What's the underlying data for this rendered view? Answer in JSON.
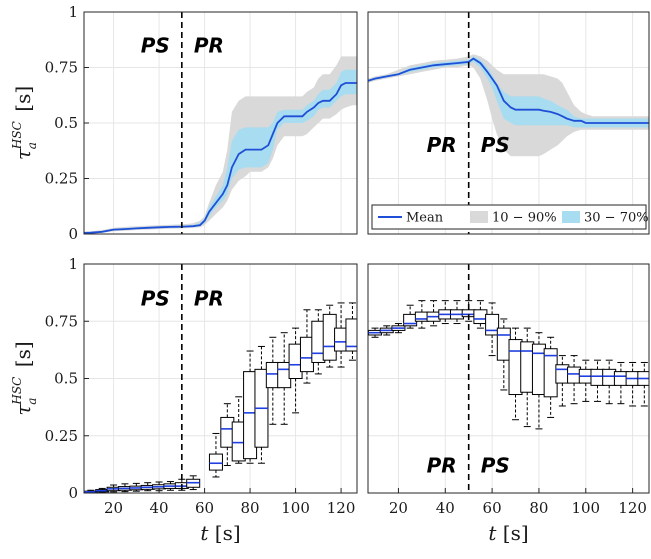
{
  "chart_data": [
    {
      "type": "area",
      "panel": "top-left",
      "xlim": [
        7,
        127
      ],
      "ylim": [
        0,
        1
      ],
      "yticks": [
        "0",
        "0.25",
        "0.5",
        "0.75",
        "1"
      ],
      "ylabel_main": "τ",
      "ylabel_sub": "a",
      "ylabel_sup": "HSC",
      "ylabel_unit": "[s]",
      "vline_x": 50,
      "phase_left": "PS",
      "phase_right": "PR",
      "phase_y": 0.85,
      "x": [
        7,
        10,
        15,
        20,
        25,
        30,
        35,
        40,
        45,
        50,
        52,
        55,
        58,
        60,
        62,
        65,
        68,
        70,
        72,
        75,
        78,
        80,
        82,
        85,
        88,
        90,
        92,
        95,
        98,
        100,
        103,
        105,
        108,
        110,
        112,
        115,
        118,
        120,
        122,
        125,
        127
      ],
      "mean": [
        0.005,
        0.006,
        0.01,
        0.02,
        0.022,
        0.025,
        0.028,
        0.03,
        0.032,
        0.033,
        0.034,
        0.035,
        0.04,
        0.06,
        0.1,
        0.14,
        0.18,
        0.22,
        0.3,
        0.36,
        0.38,
        0.38,
        0.38,
        0.38,
        0.4,
        0.45,
        0.5,
        0.53,
        0.53,
        0.53,
        0.53,
        0.55,
        0.57,
        0.59,
        0.6,
        0.6,
        0.63,
        0.67,
        0.68,
        0.68,
        0.68
      ],
      "p10": [
        0.0,
        0.002,
        0.006,
        0.012,
        0.015,
        0.018,
        0.02,
        0.022,
        0.024,
        0.025,
        0.026,
        0.028,
        0.03,
        0.04,
        0.06,
        0.09,
        0.12,
        0.15,
        0.2,
        0.24,
        0.26,
        0.28,
        0.28,
        0.28,
        0.3,
        0.34,
        0.4,
        0.44,
        0.44,
        0.44,
        0.44,
        0.45,
        0.48,
        0.5,
        0.52,
        0.52,
        0.54,
        0.56,
        0.57,
        0.58,
        0.58
      ],
      "p90": [
        0.01,
        0.012,
        0.018,
        0.028,
        0.032,
        0.035,
        0.038,
        0.04,
        0.042,
        0.044,
        0.045,
        0.048,
        0.06,
        0.08,
        0.14,
        0.22,
        0.28,
        0.38,
        0.55,
        0.6,
        0.62,
        0.62,
        0.62,
        0.62,
        0.62,
        0.62,
        0.62,
        0.62,
        0.62,
        0.62,
        0.62,
        0.64,
        0.66,
        0.7,
        0.72,
        0.72,
        0.76,
        0.8,
        0.8,
        0.8,
        0.8
      ],
      "p30": [
        0.003,
        0.004,
        0.008,
        0.016,
        0.018,
        0.021,
        0.024,
        0.026,
        0.028,
        0.029,
        0.03,
        0.031,
        0.035,
        0.05,
        0.08,
        0.12,
        0.15,
        0.18,
        0.25,
        0.29,
        0.3,
        0.3,
        0.3,
        0.3,
        0.32,
        0.38,
        0.47,
        0.5,
        0.5,
        0.5,
        0.5,
        0.51,
        0.53,
        0.56,
        0.57,
        0.57,
        0.6,
        0.62,
        0.63,
        0.63,
        0.63
      ],
      "p70": [
        0.007,
        0.009,
        0.014,
        0.024,
        0.027,
        0.03,
        0.033,
        0.035,
        0.037,
        0.038,
        0.039,
        0.041,
        0.05,
        0.07,
        0.12,
        0.17,
        0.22,
        0.3,
        0.42,
        0.47,
        0.48,
        0.48,
        0.48,
        0.48,
        0.48,
        0.5,
        0.55,
        0.56,
        0.56,
        0.56,
        0.56,
        0.58,
        0.6,
        0.63,
        0.65,
        0.65,
        0.68,
        0.73,
        0.74,
        0.74,
        0.74
      ]
    },
    {
      "type": "area",
      "panel": "top-right",
      "xlim": [
        7,
        127
      ],
      "ylim": [
        0,
        1
      ],
      "vline_x": 50,
      "phase_left": "PR",
      "phase_right": "PS",
      "phase_y": 0.4,
      "x": [
        7,
        10,
        15,
        20,
        25,
        30,
        35,
        40,
        45,
        50,
        52,
        55,
        58,
        60,
        62,
        65,
        68,
        70,
        72,
        75,
        78,
        80,
        82,
        85,
        88,
        90,
        92,
        95,
        98,
        100,
        103,
        105,
        108,
        110,
        112,
        115,
        118,
        120,
        122,
        125,
        127
      ],
      "mean": [
        0.69,
        0.7,
        0.71,
        0.72,
        0.74,
        0.75,
        0.76,
        0.765,
        0.77,
        0.775,
        0.79,
        0.77,
        0.73,
        0.7,
        0.67,
        0.6,
        0.57,
        0.56,
        0.56,
        0.56,
        0.56,
        0.56,
        0.555,
        0.55,
        0.54,
        0.53,
        0.52,
        0.51,
        0.51,
        0.5,
        0.5,
        0.5,
        0.5,
        0.5,
        0.5,
        0.5,
        0.5,
        0.5,
        0.5,
        0.5,
        0.5
      ],
      "p10": [
        0.68,
        0.69,
        0.7,
        0.71,
        0.72,
        0.73,
        0.74,
        0.75,
        0.75,
        0.76,
        0.75,
        0.7,
        0.6,
        0.52,
        0.45,
        0.38,
        0.35,
        0.35,
        0.35,
        0.35,
        0.35,
        0.35,
        0.36,
        0.38,
        0.4,
        0.42,
        0.44,
        0.46,
        0.47,
        0.47,
        0.47,
        0.47,
        0.47,
        0.47,
        0.47,
        0.47,
        0.47,
        0.47,
        0.47,
        0.47,
        0.47
      ],
      "p90": [
        0.7,
        0.71,
        0.72,
        0.74,
        0.76,
        0.77,
        0.78,
        0.785,
        0.79,
        0.8,
        0.81,
        0.8,
        0.78,
        0.76,
        0.74,
        0.72,
        0.72,
        0.72,
        0.72,
        0.72,
        0.72,
        0.72,
        0.72,
        0.71,
        0.7,
        0.68,
        0.64,
        0.58,
        0.55,
        0.54,
        0.53,
        0.53,
        0.53,
        0.53,
        0.53,
        0.53,
        0.53,
        0.53,
        0.53,
        0.53,
        0.53
      ],
      "p30": [
        0.685,
        0.695,
        0.705,
        0.715,
        0.73,
        0.74,
        0.75,
        0.755,
        0.76,
        0.765,
        0.775,
        0.75,
        0.7,
        0.66,
        0.6,
        0.52,
        0.5,
        0.49,
        0.49,
        0.49,
        0.49,
        0.49,
        0.49,
        0.49,
        0.49,
        0.49,
        0.49,
        0.48,
        0.48,
        0.48,
        0.48,
        0.48,
        0.48,
        0.48,
        0.48,
        0.48,
        0.48,
        0.48,
        0.48,
        0.48,
        0.48
      ],
      "p70": [
        0.695,
        0.705,
        0.715,
        0.725,
        0.75,
        0.76,
        0.77,
        0.775,
        0.78,
        0.785,
        0.8,
        0.785,
        0.75,
        0.72,
        0.68,
        0.64,
        0.62,
        0.62,
        0.62,
        0.62,
        0.62,
        0.62,
        0.61,
        0.6,
        0.58,
        0.57,
        0.56,
        0.53,
        0.52,
        0.52,
        0.52,
        0.52,
        0.52,
        0.52,
        0.52,
        0.52,
        0.52,
        0.52,
        0.52,
        0.52,
        0.52
      ],
      "legend": [
        {
          "label": "Mean",
          "color": "#1f4fd6",
          "kind": "line"
        },
        {
          "label": "10 − 90%",
          "color": "#d9d9d9",
          "kind": "patch"
        },
        {
          "label": "30 − 70%",
          "color": "#a8dcf0",
          "kind": "patch"
        }
      ],
      "legend_placement": "bottom-right"
    },
    {
      "type": "box",
      "panel": "bottom-left",
      "xlim": [
        7,
        127
      ],
      "ylim": [
        0,
        1
      ],
      "yticks": [
        "0",
        "0.25",
        "0.5",
        "0.75",
        "1"
      ],
      "xticks": [
        "20",
        "40",
        "60",
        "80",
        "100",
        "120"
      ],
      "xtick_values": [
        20,
        40,
        60,
        80,
        100,
        120
      ],
      "xlabel_var": "t",
      "xlabel_unit": "[s]",
      "ylabel_main": "τ",
      "ylabel_sub": "a",
      "ylabel_sup": "HSC",
      "ylabel_unit": "[s]",
      "vline_x": 50,
      "phase_left": "PS",
      "phase_right": "PR",
      "phase_y": 0.85,
      "boxes": [
        {
          "x": 10,
          "low": 0.0,
          "q1": 0.002,
          "med": 0.005,
          "q3": 0.008,
          "high": 0.012
        },
        {
          "x": 15,
          "low": 0.002,
          "q1": 0.005,
          "med": 0.01,
          "q3": 0.015,
          "high": 0.02
        },
        {
          "x": 20,
          "low": 0.005,
          "q1": 0.01,
          "med": 0.018,
          "q3": 0.025,
          "high": 0.035
        },
        {
          "x": 25,
          "low": 0.006,
          "q1": 0.012,
          "med": 0.02,
          "q3": 0.028,
          "high": 0.04
        },
        {
          "x": 30,
          "low": 0.008,
          "q1": 0.014,
          "med": 0.022,
          "q3": 0.03,
          "high": 0.042
        },
        {
          "x": 35,
          "low": 0.01,
          "q1": 0.016,
          "med": 0.025,
          "q3": 0.033,
          "high": 0.045
        },
        {
          "x": 40,
          "low": 0.01,
          "q1": 0.018,
          "med": 0.027,
          "q3": 0.036,
          "high": 0.048
        },
        {
          "x": 45,
          "low": 0.012,
          "q1": 0.02,
          "med": 0.03,
          "q3": 0.04,
          "high": 0.05
        },
        {
          "x": 50,
          "low": 0.012,
          "q1": 0.02,
          "med": 0.03,
          "q3": 0.045,
          "high": 0.06
        },
        {
          "x": 55,
          "low": 0.015,
          "q1": 0.025,
          "med": 0.045,
          "q3": 0.06,
          "high": 0.075
        },
        {
          "x": 65,
          "low": 0.07,
          "q1": 0.1,
          "med": 0.13,
          "q3": 0.17,
          "high": 0.26
        },
        {
          "x": 70,
          "low": 0.12,
          "q1": 0.2,
          "med": 0.28,
          "q3": 0.33,
          "high": 0.39
        },
        {
          "x": 75,
          "low": 0.13,
          "q1": 0.14,
          "med": 0.22,
          "q3": 0.31,
          "high": 0.42
        },
        {
          "x": 80,
          "low": 0.13,
          "q1": 0.15,
          "med": 0.35,
          "q3": 0.53,
          "high": 0.62
        },
        {
          "x": 85,
          "low": 0.13,
          "q1": 0.2,
          "med": 0.37,
          "q3": 0.54,
          "high": 0.64
        },
        {
          "x": 90,
          "low": 0.3,
          "q1": 0.46,
          "med": 0.52,
          "q3": 0.57,
          "high": 0.68
        },
        {
          "x": 95,
          "low": 0.3,
          "q1": 0.46,
          "med": 0.54,
          "q3": 0.57,
          "high": 0.7
        },
        {
          "x": 100,
          "low": 0.35,
          "q1": 0.5,
          "med": 0.56,
          "q3": 0.65,
          "high": 0.72
        },
        {
          "x": 105,
          "low": 0.48,
          "q1": 0.53,
          "med": 0.59,
          "q3": 0.68,
          "high": 0.8
        },
        {
          "x": 110,
          "low": 0.52,
          "q1": 0.57,
          "med": 0.61,
          "q3": 0.75,
          "high": 0.8
        },
        {
          "x": 115,
          "low": 0.55,
          "q1": 0.58,
          "med": 0.64,
          "q3": 0.78,
          "high": 0.82
        },
        {
          "x": 120,
          "low": 0.55,
          "q1": 0.62,
          "med": 0.66,
          "q3": 0.72,
          "high": 0.83
        },
        {
          "x": 125,
          "low": 0.58,
          "q1": 0.62,
          "med": 0.64,
          "q3": 0.76,
          "high": 0.83
        }
      ]
    },
    {
      "type": "box",
      "panel": "bottom-right",
      "xlim": [
        7,
        127
      ],
      "ylim": [
        0,
        1
      ],
      "xticks": [
        "20",
        "40",
        "60",
        "80",
        "100",
        "120"
      ],
      "xtick_values": [
        20,
        40,
        60,
        80,
        100,
        120
      ],
      "xlabel_var": "t",
      "xlabel_unit": "[s]",
      "vline_x": 50,
      "phase_left": "PR",
      "phase_right": "PS",
      "phase_y": 0.12,
      "boxes": [
        {
          "x": 10,
          "low": 0.68,
          "q1": 0.69,
          "med": 0.7,
          "q3": 0.71,
          "high": 0.72
        },
        {
          "x": 15,
          "low": 0.69,
          "q1": 0.7,
          "med": 0.71,
          "q3": 0.72,
          "high": 0.73
        },
        {
          "x": 20,
          "low": 0.7,
          "q1": 0.71,
          "med": 0.72,
          "q3": 0.73,
          "high": 0.74
        },
        {
          "x": 25,
          "low": 0.72,
          "q1": 0.73,
          "med": 0.74,
          "q3": 0.78,
          "high": 0.82
        },
        {
          "x": 30,
          "low": 0.72,
          "q1": 0.75,
          "med": 0.76,
          "q3": 0.79,
          "high": 0.84
        },
        {
          "x": 35,
          "low": 0.73,
          "q1": 0.75,
          "med": 0.77,
          "q3": 0.79,
          "high": 0.84
        },
        {
          "x": 40,
          "low": 0.74,
          "q1": 0.76,
          "med": 0.78,
          "q3": 0.8,
          "high": 0.84
        },
        {
          "x": 45,
          "low": 0.74,
          "q1": 0.76,
          "med": 0.78,
          "q3": 0.8,
          "high": 0.84
        },
        {
          "x": 50,
          "low": 0.75,
          "q1": 0.77,
          "med": 0.78,
          "q3": 0.8,
          "high": 0.84
        },
        {
          "x": 55,
          "low": 0.72,
          "q1": 0.74,
          "med": 0.76,
          "q3": 0.8,
          "high": 0.84
        },
        {
          "x": 60,
          "low": 0.6,
          "q1": 0.69,
          "med": 0.71,
          "q3": 0.78,
          "high": 0.83
        },
        {
          "x": 65,
          "low": 0.45,
          "q1": 0.58,
          "med": 0.69,
          "q3": 0.72,
          "high": 0.76
        },
        {
          "x": 70,
          "low": 0.32,
          "q1": 0.43,
          "med": 0.62,
          "q3": 0.67,
          "high": 0.72
        },
        {
          "x": 75,
          "low": 0.29,
          "q1": 0.44,
          "med": 0.62,
          "q3": 0.66,
          "high": 0.72
        },
        {
          "x": 80,
          "low": 0.28,
          "q1": 0.43,
          "med": 0.61,
          "q3": 0.65,
          "high": 0.7
        },
        {
          "x": 85,
          "low": 0.33,
          "q1": 0.42,
          "med": 0.6,
          "q3": 0.63,
          "high": 0.68
        },
        {
          "x": 90,
          "low": 0.38,
          "q1": 0.48,
          "med": 0.54,
          "q3": 0.56,
          "high": 0.6
        },
        {
          "x": 95,
          "low": 0.39,
          "q1": 0.48,
          "med": 0.52,
          "q3": 0.55,
          "high": 0.6
        },
        {
          "x": 100,
          "low": 0.4,
          "q1": 0.48,
          "med": 0.51,
          "q3": 0.54,
          "high": 0.58
        },
        {
          "x": 105,
          "low": 0.4,
          "q1": 0.47,
          "med": 0.51,
          "q3": 0.54,
          "high": 0.58
        },
        {
          "x": 110,
          "low": 0.39,
          "q1": 0.47,
          "med": 0.51,
          "q3": 0.54,
          "high": 0.58
        },
        {
          "x": 115,
          "low": 0.39,
          "q1": 0.47,
          "med": 0.51,
          "q3": 0.53,
          "high": 0.57
        },
        {
          "x": 120,
          "low": 0.38,
          "q1": 0.47,
          "med": 0.5,
          "q3": 0.53,
          "high": 0.57
        },
        {
          "x": 125,
          "low": 0.38,
          "q1": 0.47,
          "med": 0.5,
          "q3": 0.53,
          "high": 0.57
        }
      ]
    }
  ],
  "colors": {
    "mean_line": "#1f4fd6",
    "band_10_90": "#d9d9d9",
    "band_30_70": "#a8dcf0",
    "median": "#1f3fe0",
    "grid": "#e6e6e6"
  }
}
